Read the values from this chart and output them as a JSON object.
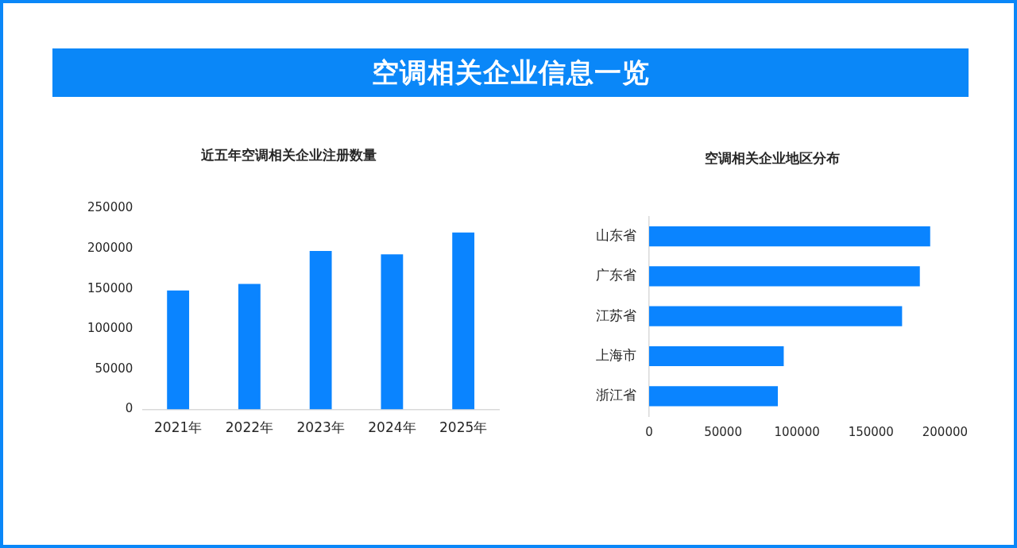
{
  "chart_data": [
    {
      "type": "other",
      "title": "空调相关企业信息一览"
    },
    {
      "type": "bar",
      "title": "近五年空调相关企业注册数量",
      "categories": [
        "2021年",
        "2022年",
        "2023年",
        "2024年",
        "2025年"
      ],
      "values": [
        148000,
        156000,
        197000,
        193000,
        220000
      ],
      "color": "#0a84ff",
      "ylim": [
        0,
        250000
      ],
      "yticks": [
        0,
        50000,
        100000,
        150000,
        200000,
        250000
      ]
    },
    {
      "type": "bar",
      "orientation": "horizontal",
      "title": "空调相关企业地区分布",
      "categories": [
        "山东省",
        "广东省",
        "江苏省",
        "上海市",
        "浙江省"
      ],
      "values": [
        190000,
        183000,
        171000,
        91000,
        87000
      ],
      "color": "#0a84ff",
      "xlim": [
        0,
        200000
      ],
      "xticks": [
        0,
        50000,
        100000,
        150000,
        200000
      ]
    }
  ]
}
